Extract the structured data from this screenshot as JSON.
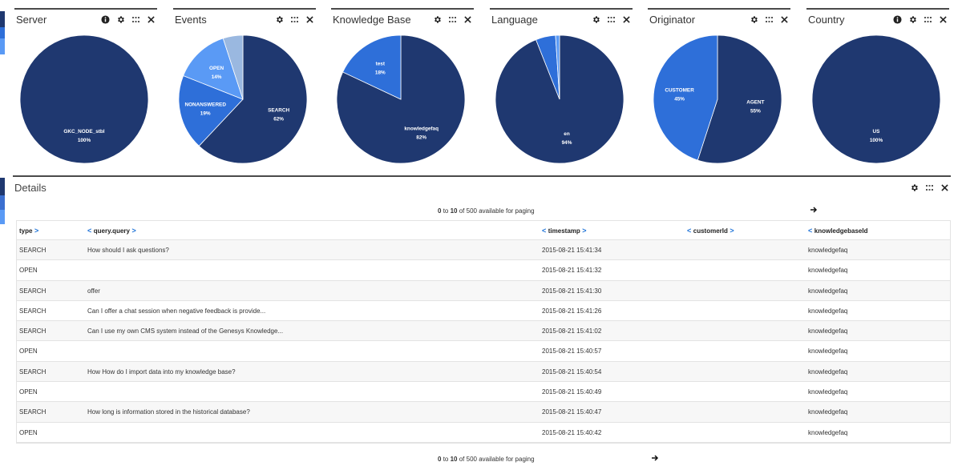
{
  "colors": {
    "dark_navy": "#1f3870",
    "royal_blue": "#2e6fd9",
    "light_blue": "#5a9af5",
    "pale_blue": "#9ab8e0",
    "edge_blue": "#3b6fd0"
  },
  "widgets": [
    {
      "title": "Server",
      "tools": [
        "info-icon",
        "gear-icon",
        "grid-icon",
        "close-icon"
      ],
      "slices": [
        {
          "label": "GKC_NODE_stbl",
          "percent_label": "100%",
          "value": 100,
          "color": "#1f3870"
        }
      ]
    },
    {
      "title": "Events",
      "tools": [
        "gear-icon",
        "grid-icon",
        "close-icon"
      ],
      "slices": [
        {
          "label": "SEARCH",
          "percent_label": "62%",
          "value": 62,
          "color": "#1f3870"
        },
        {
          "label": "NONANSWERED",
          "percent_label": "19%",
          "value": 19,
          "color": "#2e6fd9"
        },
        {
          "label": "OPEN",
          "percent_label": "14%",
          "value": 14,
          "color": "#5a9af5"
        },
        {
          "label": "",
          "percent_label": "",
          "value": 5,
          "color": "#9ab8e0"
        }
      ]
    },
    {
      "title": "Knowledge Base",
      "tools": [
        "gear-icon",
        "grid-icon",
        "close-icon"
      ],
      "slices": [
        {
          "label": "knowledgefaq",
          "percent_label": "82%",
          "value": 82,
          "color": "#1f3870"
        },
        {
          "label": "test",
          "percent_label": "18%",
          "value": 18,
          "color": "#2e6fd9"
        }
      ]
    },
    {
      "title": "Language",
      "tools": [
        "gear-icon",
        "grid-icon",
        "close-icon"
      ],
      "slices": [
        {
          "label": "en",
          "percent_label": "94%",
          "value": 94,
          "color": "#1f3870"
        },
        {
          "label": "",
          "percent_label": "",
          "value": 5,
          "color": "#2e6fd9"
        },
        {
          "label": "",
          "percent_label": "",
          "value": 1,
          "color": "#5a9af5"
        }
      ]
    },
    {
      "title": "Originator",
      "tools": [
        "gear-icon",
        "grid-icon",
        "close-icon"
      ],
      "slices": [
        {
          "label": "AGENT",
          "percent_label": "55%",
          "value": 55,
          "color": "#1f3870"
        },
        {
          "label": "CUSTOMER",
          "percent_label": "45%",
          "value": 45,
          "color": "#2e6fd9"
        }
      ]
    },
    {
      "title": "Country",
      "tools": [
        "info-icon",
        "gear-icon",
        "grid-icon",
        "close-icon"
      ],
      "slices": [
        {
          "label": "US",
          "percent_label": "100%",
          "value": 100,
          "color": "#1f3870"
        }
      ]
    }
  ],
  "details": {
    "title": "Details",
    "paging": {
      "from": "0",
      "to_word": "to",
      "to": "10",
      "rest": "of 500 available for paging"
    },
    "columns": [
      {
        "label": "type",
        "left_chevron": "",
        "right_chevron": ">"
      },
      {
        "label": "query.query",
        "left_chevron": "<",
        "right_chevron": ">"
      },
      {
        "label": "timestamp",
        "left_chevron": "<",
        "right_chevron": ">"
      },
      {
        "label": "customerId",
        "left_chevron": "<",
        "right_chevron": ">"
      },
      {
        "label": "knowledgebaseId",
        "left_chevron": "<",
        "right_chevron": ""
      }
    ],
    "rows": [
      [
        "SEARCH",
        "How should I ask questions?",
        "2015-08-21 15:41:34",
        "",
        "knowledgefaq"
      ],
      [
        "OPEN",
        "",
        "2015-08-21 15:41:32",
        "",
        "knowledgefaq"
      ],
      [
        "SEARCH",
        "offer",
        "2015-08-21 15:41:30",
        "",
        "knowledgefaq"
      ],
      [
        "SEARCH",
        "Can I offer a chat session when negative feedback is provide...",
        "2015-08-21 15:41:26",
        "",
        "knowledgefaq"
      ],
      [
        "SEARCH",
        "Can I use my own CMS system instead of the Genesys Knowledge...",
        "2015-08-21 15:41:02",
        "",
        "knowledgefaq"
      ],
      [
        "OPEN",
        "",
        "2015-08-21 15:40:57",
        "",
        "knowledgefaq"
      ],
      [
        "SEARCH",
        "How How do I import data into my knowledge base?",
        "2015-08-21 15:40:54",
        "",
        "knowledgefaq"
      ],
      [
        "OPEN",
        "",
        "2015-08-21 15:40:49",
        "",
        "knowledgefaq"
      ],
      [
        "SEARCH",
        "How long is information stored in the historical database?",
        "2015-08-21 15:40:47",
        "",
        "knowledgefaq"
      ],
      [
        "OPEN",
        "",
        "2015-08-21 15:40:42",
        "",
        "knowledgefaq"
      ]
    ]
  }
}
